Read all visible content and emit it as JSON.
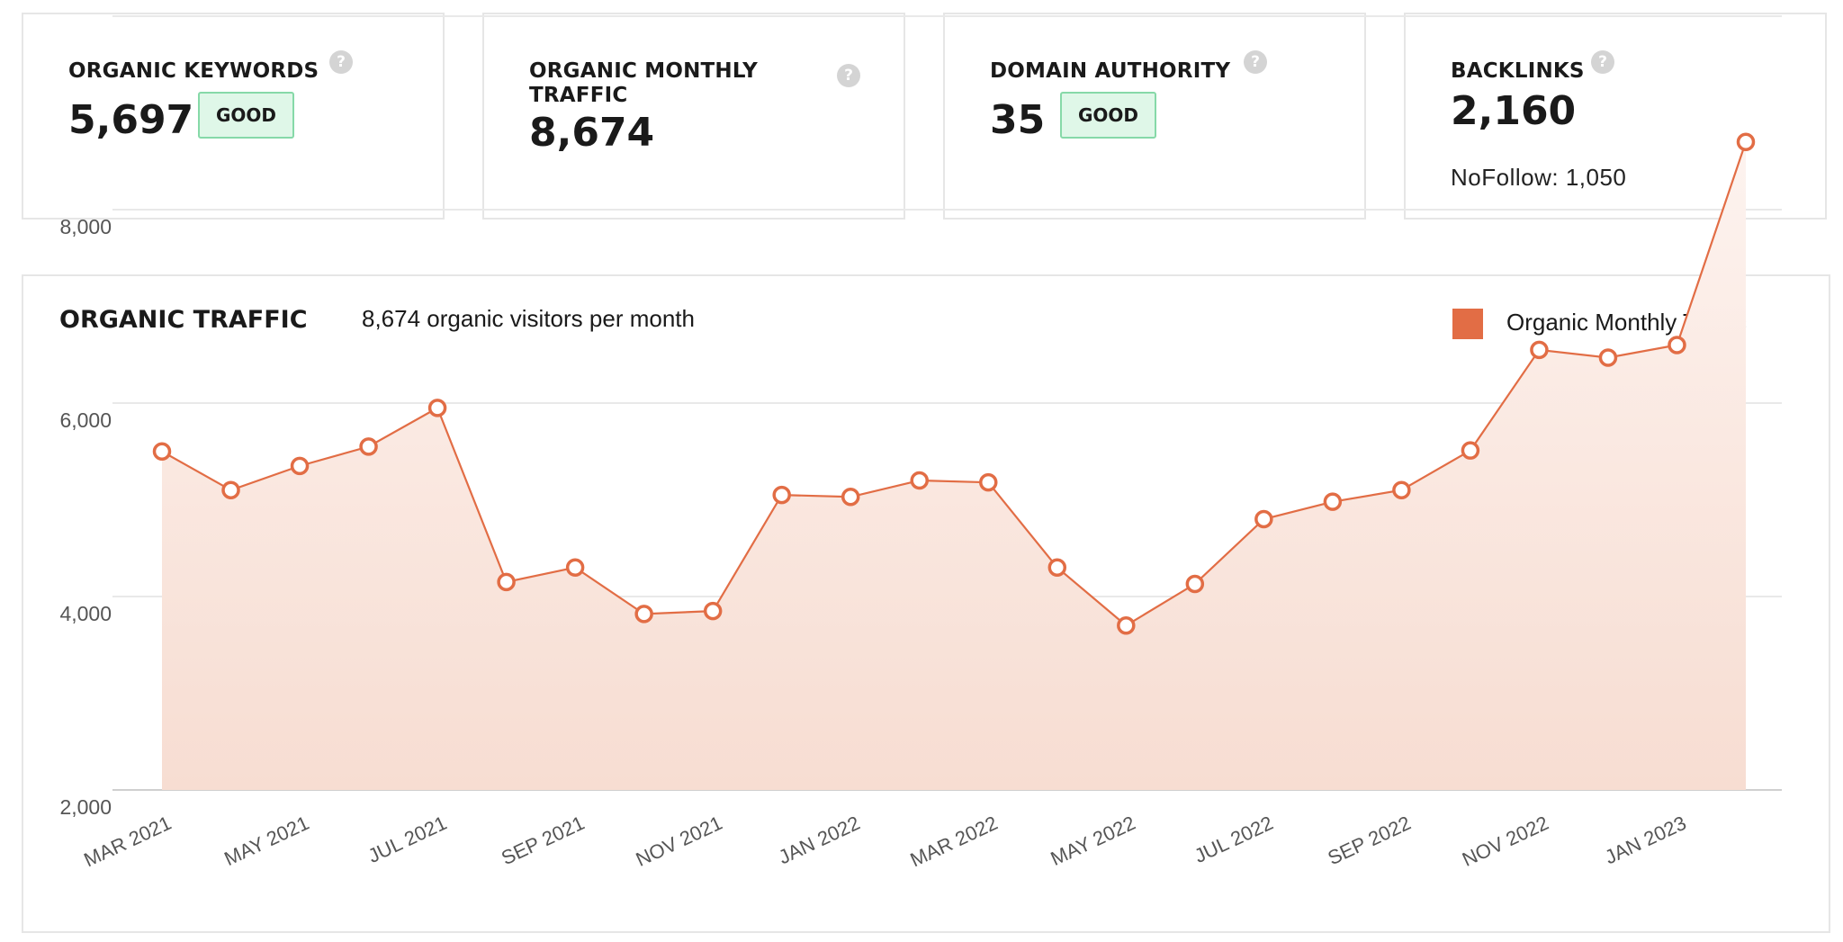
{
  "cards": {
    "keywords": {
      "label": "ORGANIC KEYWORDS",
      "value": "5,697",
      "badge": "GOOD"
    },
    "traffic": {
      "label_line1": "ORGANIC MONTHLY",
      "label_line2": "TRAFFIC",
      "value": "8,674"
    },
    "authority": {
      "label": "DOMAIN AUTHORITY",
      "value": "35",
      "badge": "GOOD"
    },
    "backlinks": {
      "label": "BACKLINKS",
      "value": "2,160",
      "nofollow": "NoFollow: 1,050"
    },
    "help_glyph": "?"
  },
  "chart_data": {
    "type": "area",
    "title": "ORGANIC TRAFFIC",
    "subtitle": "8,674 organic visitors per month",
    "legend": "Organic Monthly Traffic",
    "color": "#e26d45",
    "fill_top": "#fdf3ef",
    "fill_bottom": "#f7ddd2",
    "ylim": [
      2000,
      10000
    ],
    "yticks": [
      2000,
      4000,
      6000,
      8000
    ],
    "ytick_labels": [
      "2,000",
      "4,000",
      "6,000",
      "8,000"
    ],
    "x": [
      "MAR 2021",
      "APR 2021",
      "MAY 2021",
      "JUN 2021",
      "JUL 2021",
      "AUG 2021",
      "SEP 2021",
      "OCT 2021",
      "NOV 2021",
      "DEC 2021",
      "JAN 2022",
      "FEB 2022",
      "MAR 2022",
      "APR 2022",
      "MAY 2022",
      "JUN 2022",
      "JUL 2022",
      "AUG 2022",
      "SEP 2022",
      "OCT 2022",
      "NOV 2022",
      "DEC 2022",
      "JAN 2023",
      "FEB 2023"
    ],
    "xtick_labels": [
      "MAR 2021",
      "MAY 2021",
      "JUL 2021",
      "SEP 2021",
      "NOV 2021",
      "JAN 2022",
      "MAR 2022",
      "MAY 2022",
      "JUL 2022",
      "SEP 2022",
      "NOV 2022",
      "JAN 2023"
    ],
    "series": [
      {
        "name": "Organic Monthly Traffic",
        "values": [
          5500,
          5100,
          5350,
          5550,
          5950,
          4150,
          4300,
          3820,
          3850,
          5050,
          5030,
          5200,
          5180,
          4300,
          3700,
          4130,
          4800,
          4980,
          5100,
          5510,
          6550,
          6470,
          6600,
          8700
        ]
      }
    ]
  }
}
